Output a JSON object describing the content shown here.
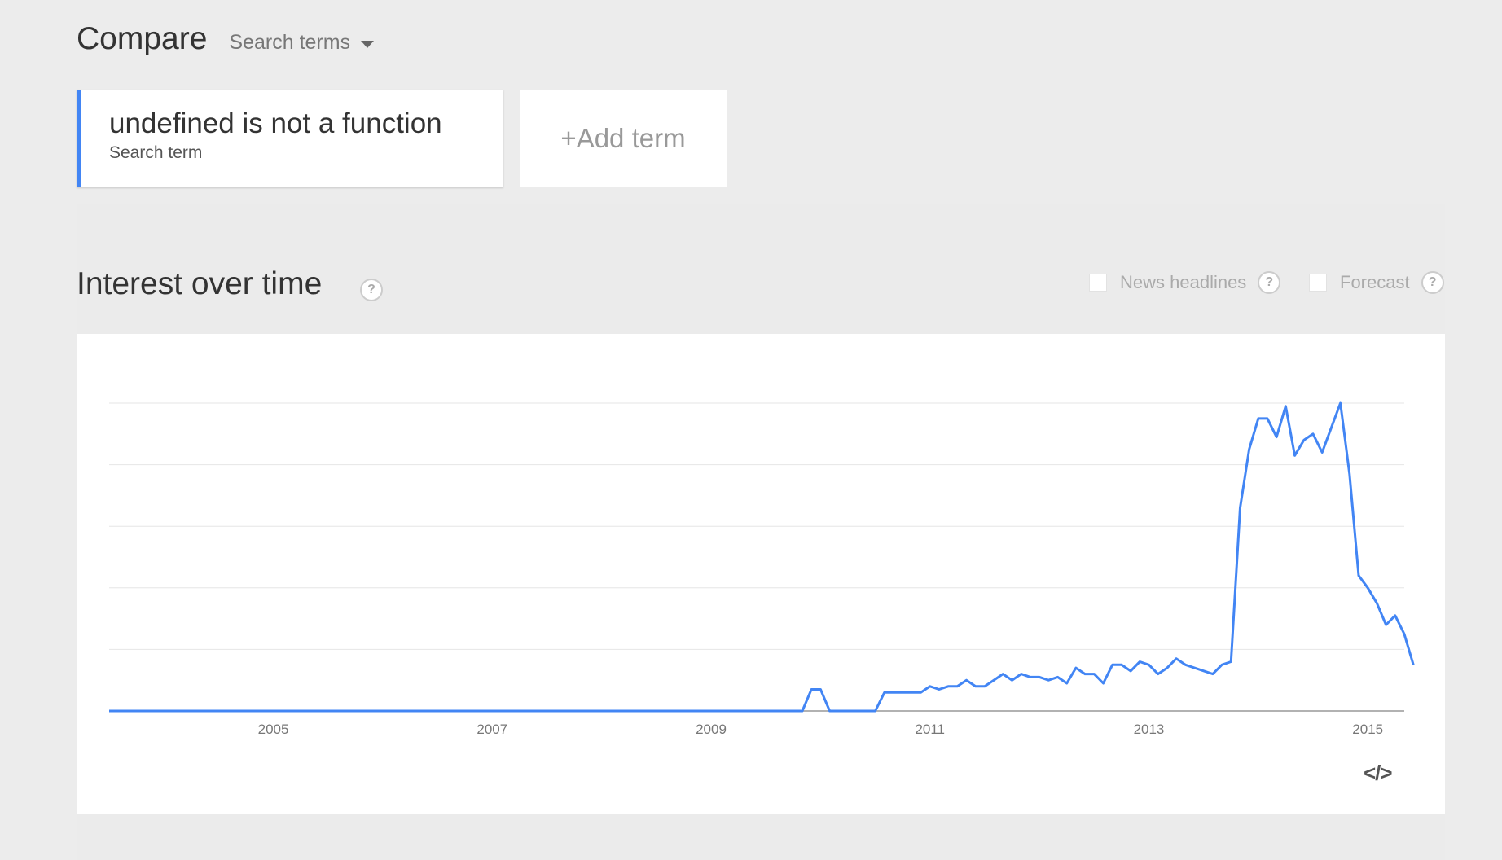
{
  "header": {
    "compare_label": "Compare",
    "search_terms_dropdown": "Search terms"
  },
  "term_card": {
    "term": "undefined is not a function",
    "subtitle": "Search term",
    "color": "#4285f4"
  },
  "add_term": {
    "plus": "+",
    "label": "Add term"
  },
  "section": {
    "title": "Interest over time",
    "help_glyph": "?"
  },
  "options": {
    "news_headlines": "News headlines",
    "forecast": "Forecast",
    "help_glyph": "?"
  },
  "embed_icon": "</>",
  "chart_data": {
    "type": "line",
    "title": "",
    "xlabel": "",
    "ylabel": "",
    "x_ticks": [
      "2005",
      "2007",
      "2009",
      "2011",
      "2013",
      "2015"
    ],
    "x_range": [
      "2004-01",
      "2015-11"
    ],
    "ylim": [
      0,
      100
    ],
    "grid": true,
    "series": [
      {
        "color": "#4285f4",
        "points": [
          [
            "2004-01",
            0
          ],
          [
            "2010-05",
            0
          ],
          [
            "2010-06",
            7
          ],
          [
            "2010-07",
            7
          ],
          [
            "2010-08",
            0
          ],
          [
            "2011-01",
            0
          ],
          [
            "2011-02",
            6
          ],
          [
            "2011-06",
            6
          ],
          [
            "2011-07",
            8
          ],
          [
            "2011-08",
            7
          ],
          [
            "2011-09",
            8
          ],
          [
            "2011-10",
            8
          ],
          [
            "2011-11",
            10
          ],
          [
            "2011-12",
            8
          ],
          [
            "2012-01",
            8
          ],
          [
            "2012-02",
            10
          ],
          [
            "2012-03",
            12
          ],
          [
            "2012-04",
            10
          ],
          [
            "2012-05",
            12
          ],
          [
            "2012-06",
            11
          ],
          [
            "2012-07",
            11
          ],
          [
            "2012-08",
            10
          ],
          [
            "2012-09",
            11
          ],
          [
            "2012-10",
            9
          ],
          [
            "2012-11",
            14
          ],
          [
            "2012-12",
            12
          ],
          [
            "2013-01",
            12
          ],
          [
            "2013-02",
            9
          ],
          [
            "2013-03",
            15
          ],
          [
            "2013-04",
            15
          ],
          [
            "2013-05",
            13
          ],
          [
            "2013-06",
            16
          ],
          [
            "2013-07",
            15
          ],
          [
            "2013-08",
            12
          ],
          [
            "2013-09",
            14
          ],
          [
            "2013-10",
            17
          ],
          [
            "2013-11",
            15
          ],
          [
            "2014-02",
            12
          ],
          [
            "2014-03",
            15
          ],
          [
            "2014-04",
            16
          ],
          [
            "2014-05",
            66
          ],
          [
            "2014-06",
            85
          ],
          [
            "2014-07",
            95
          ],
          [
            "2014-08",
            95
          ],
          [
            "2014-09",
            89
          ],
          [
            "2014-10",
            99
          ],
          [
            "2014-11",
            83
          ],
          [
            "2014-12",
            88
          ],
          [
            "2015-01",
            90
          ],
          [
            "2015-02",
            84
          ],
          [
            "2015-04",
            100
          ],
          [
            "2015-05",
            77
          ],
          [
            "2015-06",
            44
          ],
          [
            "2015-07",
            40
          ],
          [
            "2015-08",
            35
          ],
          [
            "2015-09",
            28
          ],
          [
            "2015-10",
            31
          ],
          [
            "2015-11",
            25
          ],
          [
            "2015-12",
            15
          ]
        ]
      }
    ]
  }
}
